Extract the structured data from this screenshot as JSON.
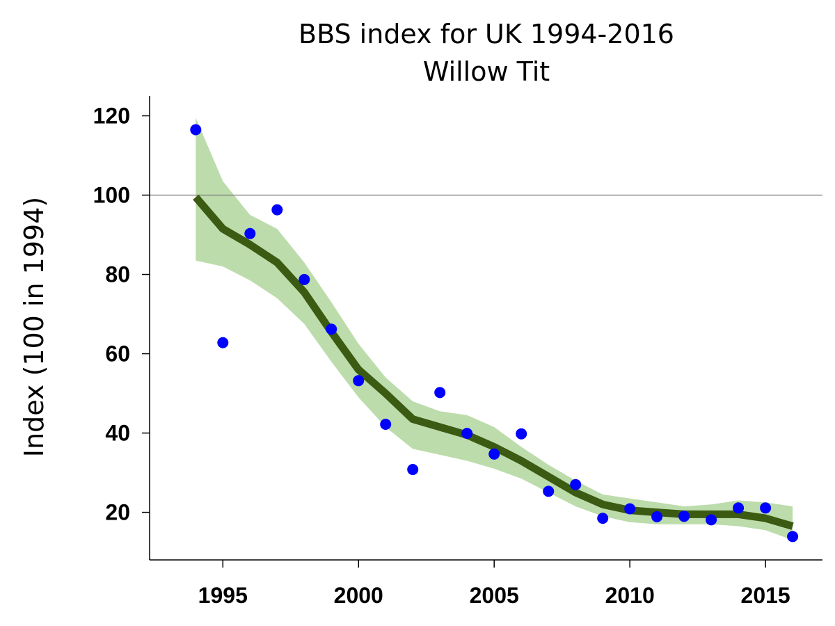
{
  "chart_data": {
    "type": "line",
    "title_lines": [
      "BBS index for UK 1994-2016",
      "Willow Tit"
    ],
    "xlabel": "",
    "ylabel": "Index (100 in 1994)",
    "xlim": [
      1992.3,
      2017.1
    ],
    "ylim": [
      8,
      125
    ],
    "xticks": [
      1995,
      2000,
      2005,
      2010,
      2015
    ],
    "yticks": [
      20,
      40,
      60,
      80,
      100,
      120
    ],
    "reference_line": 100,
    "grid": false,
    "legend": "none",
    "x": [
      1994,
      1995,
      1996,
      1997,
      1998,
      1999,
      2000,
      2001,
      2002,
      2003,
      2004,
      2005,
      2006,
      2007,
      2008,
      2009,
      2010,
      2011,
      2012,
      2013,
      2014,
      2015,
      2016
    ],
    "series": [
      {
        "kind": "points",
        "values": [
          116.5,
          62.8,
          90.3,
          96.3,
          78.7,
          66.2,
          53.2,
          42.2,
          30.8,
          50.2,
          39.9,
          34.7,
          39.8,
          25.3,
          27.0,
          18.5,
          20.9,
          18.9,
          19.0,
          18.1,
          21.1,
          21.1,
          13.9
        ]
      },
      {
        "kind": "smoothed",
        "values": [
          99.5,
          91.5,
          87.5,
          83.0,
          75.5,
          65.5,
          56.0,
          50.0,
          43.5,
          41.5,
          39.5,
          36.5,
          33.0,
          29.0,
          25.0,
          22.0,
          20.5,
          20.0,
          19.5,
          19.5,
          19.5,
          18.5,
          16.5
        ]
      },
      {
        "kind": "band",
        "upper": [
          119.5,
          103.5,
          95.0,
          91.5,
          83.0,
          73.0,
          62.5,
          54.0,
          48.0,
          45.5,
          44.5,
          41.5,
          36.5,
          32.0,
          28.0,
          24.5,
          23.5,
          22.5,
          21.5,
          22.0,
          23.0,
          22.5,
          21.5
        ],
        "lower": [
          83.5,
          82.0,
          78.5,
          74.0,
          67.5,
          58.0,
          49.0,
          41.5,
          36.0,
          34.5,
          33.0,
          31.0,
          28.5,
          25.0,
          21.5,
          19.0,
          17.5,
          17.0,
          17.0,
          17.0,
          16.5,
          15.5,
          13.0
        ]
      }
    ],
    "colors": {
      "points": "#0000ff",
      "smoothed": "#3b5a12",
      "band": "#bcdcac",
      "axis": "#000000",
      "reference": "#777777"
    }
  }
}
